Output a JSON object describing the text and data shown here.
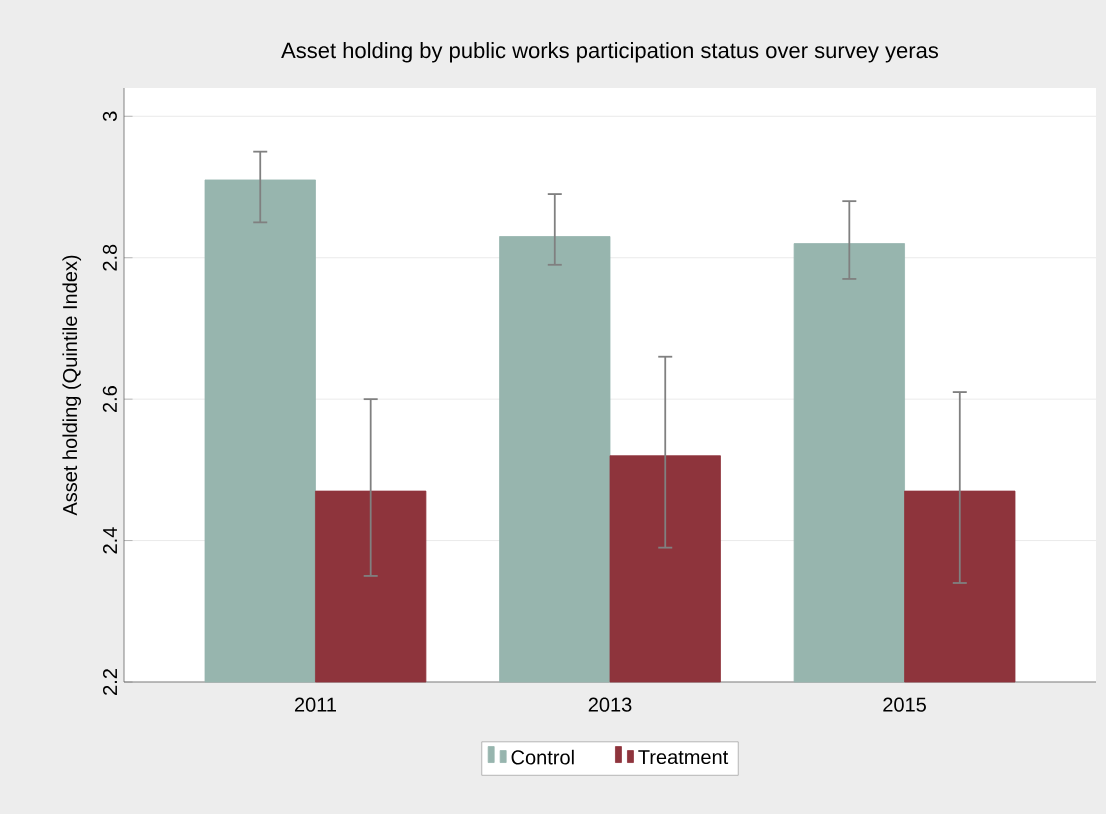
{
  "chart_data": {
    "type": "bar",
    "title": "Asset holding by public works participation status over survey yeras",
    "ylabel": "Asset holding (Quintile Index)",
    "categories": [
      "2011",
      "2013",
      "2015"
    ],
    "series": [
      {
        "name": "Control",
        "color": "#97b5ae",
        "values": [
          2.91,
          2.83,
          2.82
        ],
        "errors": [
          [
            2.85,
            2.95
          ],
          [
            2.79,
            2.89
          ],
          [
            2.77,
            2.88
          ]
        ]
      },
      {
        "name": "Treatment",
        "color": "#8e343c",
        "values": [
          2.47,
          2.52,
          2.47
        ],
        "errors": [
          [
            2.35,
            2.6
          ],
          [
            2.39,
            2.66
          ],
          [
            2.34,
            2.61
          ]
        ]
      }
    ],
    "ylim": [
      2.2,
      3.04
    ],
    "yticks": [
      2.2,
      2.4,
      2.6,
      2.8,
      3
    ],
    "grid": "y",
    "legend": "bottom"
  }
}
